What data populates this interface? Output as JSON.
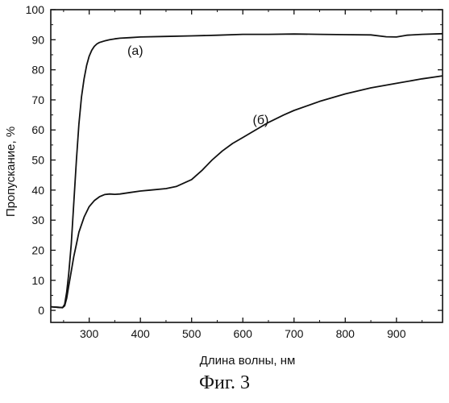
{
  "chart_data": {
    "type": "line",
    "xlabel": "Длина волны, нм",
    "ylabel": "Пропускание, %",
    "xlim": [
      225,
      990
    ],
    "ylim": [
      -4,
      100
    ],
    "x_ticks": [
      300,
      400,
      500,
      600,
      700,
      800,
      900
    ],
    "y_ticks": [
      0,
      10,
      20,
      30,
      40,
      50,
      60,
      70,
      80,
      90,
      100
    ],
    "grid": false,
    "series": [
      {
        "name": "(а)",
        "x": [
          225,
          240,
          248,
          252,
          256,
          260,
          265,
          270,
          275,
          280,
          285,
          290,
          295,
          300,
          305,
          310,
          315,
          320,
          330,
          340,
          350,
          360,
          380,
          400,
          450,
          500,
          550,
          600,
          650,
          700,
          750,
          800,
          850,
          880,
          900,
          920,
          950,
          990
        ],
        "y": [
          1.2,
          1.0,
          0.9,
          2.0,
          6.0,
          12.0,
          22.0,
          36.0,
          50.0,
          62.0,
          71.0,
          77.0,
          81.5,
          84.5,
          86.5,
          87.8,
          88.6,
          89.1,
          89.6,
          90.0,
          90.3,
          90.5,
          90.7,
          90.9,
          91.1,
          91.3,
          91.5,
          91.8,
          91.8,
          91.9,
          91.8,
          91.7,
          91.6,
          91.0,
          90.9,
          91.5,
          91.8,
          92.0
        ]
      },
      {
        "name": "(б)",
        "x": [
          225,
          240,
          248,
          252,
          256,
          260,
          265,
          270,
          275,
          280,
          290,
          300,
          310,
          320,
          330,
          340,
          350,
          360,
          380,
          400,
          420,
          450,
          470,
          500,
          520,
          540,
          560,
          580,
          600,
          620,
          650,
          680,
          700,
          750,
          800,
          850,
          900,
          950,
          990
        ],
        "y": [
          1.2,
          1.0,
          0.9,
          1.5,
          4.0,
          8.0,
          13.0,
          18.0,
          22.0,
          26.0,
          31.0,
          34.5,
          36.5,
          37.8,
          38.5,
          38.7,
          38.6,
          38.7,
          39.2,
          39.7,
          40.0,
          40.5,
          41.2,
          43.5,
          46.5,
          50.0,
          53.0,
          55.5,
          57.5,
          59.5,
          62.5,
          65.0,
          66.5,
          69.5,
          72.0,
          74.0,
          75.5,
          77.0,
          78.0
        ]
      }
    ],
    "caption": "Фиг. 3"
  }
}
